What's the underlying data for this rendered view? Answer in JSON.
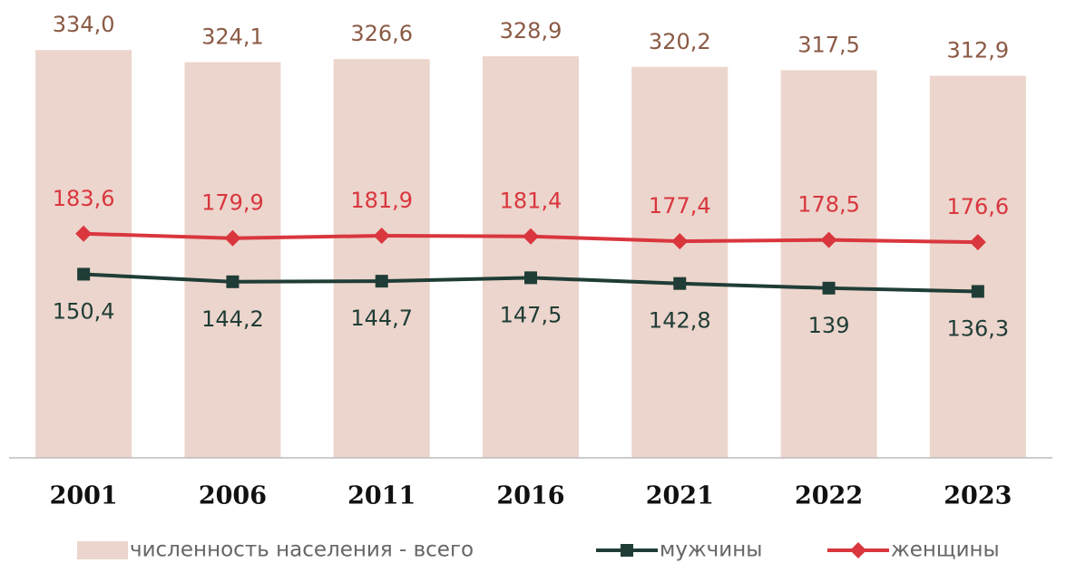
{
  "chart_data": {
    "type": "bar_line",
    "categories": [
      "2001",
      "2006",
      "2011",
      "2016",
      "2021",
      "2022",
      "2023"
    ],
    "ylim": [
      0,
      375
    ],
    "series": [
      {
        "name": "численность населения - всего",
        "type": "bar",
        "color": "#ecd5cc",
        "label_color": "#8b5a45",
        "values": [
          334.0,
          324.1,
          326.6,
          328.9,
          320.2,
          317.5,
          312.9
        ],
        "value_labels": [
          "334,0",
          "324,1",
          "326,6",
          "328,9",
          "320,2",
          "317,5",
          "312,9"
        ]
      },
      {
        "name": "мужчины",
        "type": "line",
        "marker": "square",
        "color": "#1f3d36",
        "label_color": "#1f3d36",
        "values": [
          150.4,
          144.2,
          144.7,
          147.5,
          142.8,
          139,
          136.3
        ],
        "value_labels": [
          "150,4",
          "144,2",
          "144,7",
          "147,5",
          "142,8",
          "139",
          "136,3"
        ]
      },
      {
        "name": "женщины",
        "type": "line",
        "marker": "diamond",
        "color": "#d9363e",
        "label_color": "#d9363e",
        "values": [
          183.6,
          179.9,
          181.9,
          181.4,
          177.4,
          178.5,
          176.6
        ],
        "value_labels": [
          "183,6",
          "179,9",
          "181,9",
          "181,4",
          "177,4",
          "178,5",
          "176,6"
        ]
      }
    ]
  }
}
